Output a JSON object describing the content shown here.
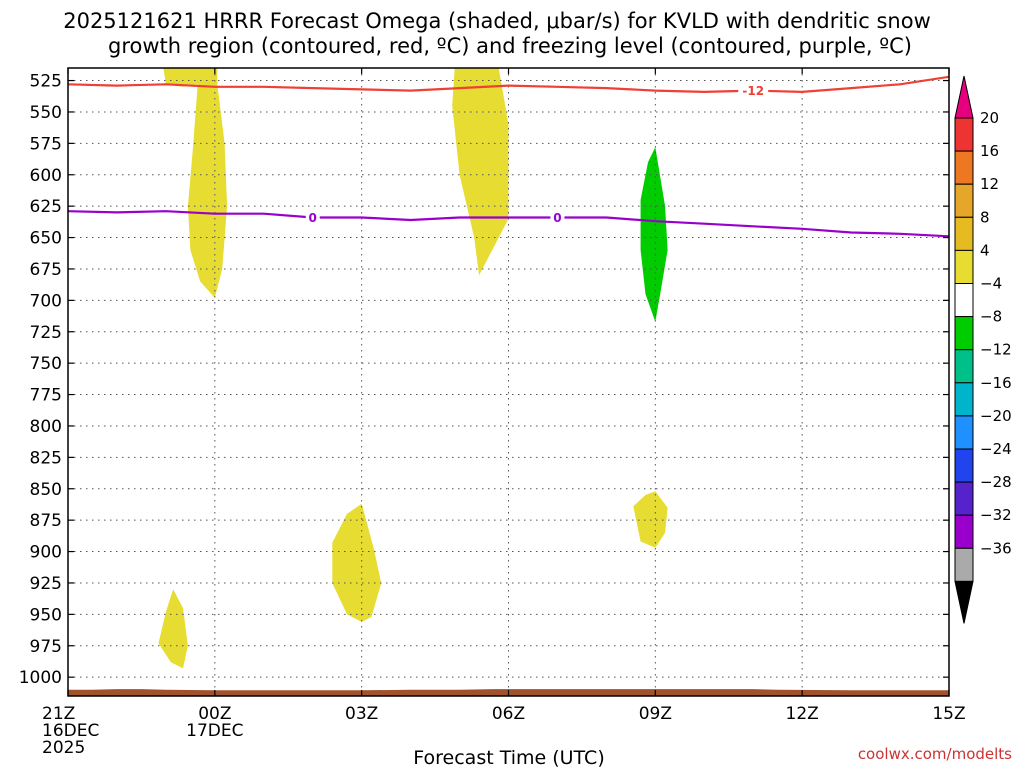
{
  "chart_data": {
    "type": "contour-timeheight",
    "title_line1": "2025121621 HRRR Forecast Omega (shaded, μbar/s) for KVLD with dendritic snow",
    "title_line2": "growth region (contoured, red, ºC) and freezing level (contoured, purple, ºC)",
    "xlabel": "Forecast Time (UTC)",
    "credit": "coolwx.com/modelts",
    "colors": {
      "dgz": "#ee4035",
      "freezing": "#9900cc",
      "pos_omega": "#e6dc32",
      "neg_omega": "#00cc00",
      "ground": "#a0522d",
      "credit": "#cc3333"
    },
    "y_axis": {
      "ylim": [
        1015,
        515
      ],
      "ticks": [
        525,
        550,
        575,
        600,
        625,
        650,
        675,
        700,
        725,
        750,
        775,
        800,
        825,
        850,
        875,
        900,
        925,
        950,
        975,
        1000
      ]
    },
    "x_axis": {
      "xlim": [
        0,
        18
      ],
      "ticks": [
        {
          "h": 0,
          "lines": [
            "21Z",
            "16DEC",
            "2025"
          ]
        },
        {
          "h": 3,
          "lines": [
            "00Z",
            "17DEC"
          ]
        },
        {
          "h": 6,
          "lines": [
            "03Z"
          ]
        },
        {
          "h": 9,
          "lines": [
            "06Z"
          ]
        },
        {
          "h": 12,
          "lines": [
            "09Z"
          ]
        },
        {
          "h": 15,
          "lines": [
            "12Z"
          ]
        },
        {
          "h": 18,
          "lines": [
            "15Z"
          ]
        }
      ]
    },
    "dgz_contour": {
      "level": -12,
      "label": "-12",
      "label_at_h": 14.0,
      "points": [
        [
          0,
          528
        ],
        [
          1,
          529
        ],
        [
          2,
          528
        ],
        [
          3,
          530
        ],
        [
          4,
          530
        ],
        [
          5,
          531
        ],
        [
          6,
          532
        ],
        [
          7,
          533
        ],
        [
          8,
          531
        ],
        [
          9,
          529
        ],
        [
          10,
          530
        ],
        [
          11,
          531
        ],
        [
          12,
          533
        ],
        [
          13,
          534
        ],
        [
          14,
          533
        ],
        [
          15,
          534
        ],
        [
          16,
          531
        ],
        [
          17,
          528
        ],
        [
          18,
          522
        ]
      ]
    },
    "freezing_contour": {
      "level": 0,
      "label": "0",
      "label_at_h": [
        5.0,
        10.0
      ],
      "points": [
        [
          0,
          629
        ],
        [
          1,
          630
        ],
        [
          2,
          629
        ],
        [
          3,
          631
        ],
        [
          4,
          631
        ],
        [
          5,
          634
        ],
        [
          6,
          634
        ],
        [
          7,
          636
        ],
        [
          8,
          634
        ],
        [
          9,
          634
        ],
        [
          10,
          634
        ],
        [
          11,
          634
        ],
        [
          12,
          637
        ],
        [
          13,
          639
        ],
        [
          14,
          641
        ],
        [
          15,
          643
        ],
        [
          16,
          646
        ],
        [
          17,
          647
        ],
        [
          18,
          649
        ]
      ]
    },
    "omega_regions": [
      {
        "name": "pos-omega-upper-00z",
        "sign": "positive",
        "points": [
          [
            1.95,
            515
          ],
          [
            3.05,
            515
          ],
          [
            3.05,
            528
          ],
          [
            3.2,
            575
          ],
          [
            3.25,
            625
          ],
          [
            3.15,
            675
          ],
          [
            3.0,
            698
          ],
          [
            2.7,
            685
          ],
          [
            2.5,
            660
          ],
          [
            2.45,
            625
          ],
          [
            2.55,
            580
          ],
          [
            2.65,
            528
          ],
          [
            2.35,
            530
          ],
          [
            2.0,
            528
          ]
        ]
      },
      {
        "name": "pos-omega-upper-05z",
        "sign": "positive",
        "points": [
          [
            7.9,
            515
          ],
          [
            8.8,
            515
          ],
          [
            9.0,
            560
          ],
          [
            9.0,
            635
          ],
          [
            8.6,
            665
          ],
          [
            8.4,
            680
          ],
          [
            8.3,
            650
          ],
          [
            8.0,
            600
          ],
          [
            7.85,
            545
          ]
        ]
      },
      {
        "name": "neg-omega-09z",
        "sign": "negative",
        "points": [
          [
            12.0,
            578
          ],
          [
            12.2,
            625
          ],
          [
            12.25,
            660
          ],
          [
            12.1,
            695
          ],
          [
            12.0,
            717
          ],
          [
            11.8,
            695
          ],
          [
            11.7,
            660
          ],
          [
            11.7,
            620
          ],
          [
            11.85,
            590
          ]
        ]
      },
      {
        "name": "pos-omega-low-2330z",
        "sign": "positive",
        "points": [
          [
            2.15,
            930
          ],
          [
            2.35,
            945
          ],
          [
            2.45,
            975
          ],
          [
            2.35,
            993
          ],
          [
            2.1,
            988
          ],
          [
            1.85,
            973
          ],
          [
            2.0,
            948
          ]
        ]
      },
      {
        "name": "pos-omega-low-03z",
        "sign": "positive",
        "points": [
          [
            6.0,
            862
          ],
          [
            6.25,
            898
          ],
          [
            6.4,
            925
          ],
          [
            6.2,
            952
          ],
          [
            6.0,
            956
          ],
          [
            5.7,
            950
          ],
          [
            5.4,
            925
          ],
          [
            5.4,
            893
          ],
          [
            5.7,
            870
          ]
        ]
      },
      {
        "name": "pos-omega-low-09z",
        "sign": "positive",
        "points": [
          [
            12.0,
            852
          ],
          [
            12.25,
            865
          ],
          [
            12.2,
            885
          ],
          [
            12.0,
            897
          ],
          [
            11.7,
            892
          ],
          [
            11.55,
            864
          ],
          [
            11.8,
            855
          ]
        ]
      }
    ],
    "ground": {
      "points": [
        [
          0,
          1010
        ],
        [
          0.5,
          1010
        ],
        [
          1,
          1009.5
        ],
        [
          1.5,
          1009.5
        ],
        [
          2,
          1010
        ],
        [
          3,
          1010.5
        ],
        [
          4,
          1010.5
        ],
        [
          5,
          1010.5
        ],
        [
          6,
          1010.5
        ],
        [
          7,
          1010
        ],
        [
          8,
          1010
        ],
        [
          8.7,
          1009.5
        ],
        [
          9,
          1009.5
        ],
        [
          10,
          1009.5
        ],
        [
          11,
          1009.5
        ],
        [
          12,
          1009.5
        ],
        [
          13,
          1009.5
        ],
        [
          14,
          1009.5
        ],
        [
          14.5,
          1010
        ],
        [
          16,
          1010.5
        ],
        [
          17,
          1010.5
        ],
        [
          18,
          1010.5
        ]
      ],
      "bottom": 1015
    },
    "colorbar": {
      "top_arrow_color": "#e6007e",
      "bottom_arrow_color": "#000000",
      "segments": [
        {
          "color": "#ee3333",
          "label": "20"
        },
        {
          "color": "#ee7722",
          "label": "16"
        },
        {
          "color": "#e5a62a",
          "label": "12"
        },
        {
          "color": "#e6bb22",
          "label": "8"
        },
        {
          "color": "#e6dc32",
          "label": "4"
        },
        {
          "color": "#ffffff",
          "label": "−4"
        },
        {
          "color": "#00cc00",
          "label": "−8"
        },
        {
          "color": "#00c08a",
          "label": "−12"
        },
        {
          "color": "#00b4cc",
          "label": "−16"
        },
        {
          "color": "#1e90ff",
          "label": "−20"
        },
        {
          "color": "#2244ee",
          "label": "−24"
        },
        {
          "color": "#5522cc",
          "label": "−28"
        },
        {
          "color": "#9900cc",
          "label": "−32"
        },
        {
          "color": "#aaaaaa",
          "label": "−36"
        }
      ]
    }
  }
}
